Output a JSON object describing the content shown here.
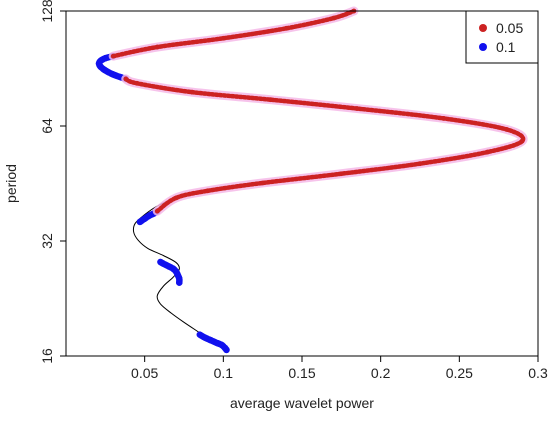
{
  "chart_data": {
    "type": "line",
    "title": "",
    "xlabel": "average wavelet power",
    "ylabel": "period",
    "xlim": [
      0.0,
      0.3
    ],
    "y_scale": "log2",
    "ylim": [
      16,
      128
    ],
    "x_ticks": [
      "0.05",
      "0.1",
      "0.15",
      "0.2",
      "0.25",
      "0.3"
    ],
    "y_ticks": [
      "16",
      "32",
      "64",
      "128"
    ],
    "grid": false,
    "legend_position": "top-right",
    "legend": [
      {
        "label": "0.05",
        "color": "#cc2222"
      },
      {
        "label": "0.1",
        "color": "#1111ee"
      }
    ],
    "series": [
      {
        "style": "line",
        "color": "#000000",
        "x": [
          0.102,
          0.1,
          0.092,
          0.085,
          0.075,
          0.067,
          0.06,
          0.058,
          0.062,
          0.068,
          0.072,
          0.07,
          0.062,
          0.052,
          0.046,
          0.043,
          0.044,
          0.05,
          0.058,
          0.07,
          0.09,
          0.125,
          0.175,
          0.225,
          0.268,
          0.29,
          0.28,
          0.24,
          0.185,
          0.13,
          0.08,
          0.045,
          0.025,
          0.021,
          0.03,
          0.058,
          0.1,
          0.14,
          0.17,
          0.183
        ],
        "y": [
          16.6,
          17.1,
          17.6,
          18.4,
          19.6,
          20.7,
          21.9,
          23.0,
          24.4,
          25.7,
          27.0,
          28.1,
          29.3,
          30.6,
          32.1,
          33.8,
          35.6,
          37.5,
          39.5,
          41.5,
          43.3,
          45.4,
          48.0,
          51.0,
          54.7,
          58.5,
          62.7,
          67.0,
          71.1,
          75.0,
          78.5,
          82.8,
          87.9,
          93.2,
          98.0,
          103.0,
          108.6,
          115.3,
          122.6,
          128.0
        ]
      },
      {
        "name": "0.1",
        "style": "points",
        "color": "#1111ee",
        "segments": [
          {
            "x": [
              0.102,
              0.101,
              0.099,
              0.096,
              0.092,
              0.088,
              0.085
            ],
            "y": [
              16.6,
              16.8,
              17.1,
              17.3,
              17.6,
              17.9,
              18.2
            ]
          },
          {
            "x": [
              0.072,
              0.072,
              0.071,
              0.07,
              0.068,
              0.065,
              0.062,
              0.06
            ],
            "y": [
              24.9,
              25.5,
              26.1,
              26.6,
              27.1,
              27.5,
              27.9,
              28.2
            ]
          },
          {
            "x": [
              0.047,
              0.05,
              0.053,
              0.056,
              0.058
            ],
            "y": [
              35.9,
              36.6,
              37.3,
              37.8,
              38.3
            ]
          },
          {
            "x": [
              0.038,
              0.03,
              0.025,
              0.022,
              0.021,
              0.022,
              0.025,
              0.03
            ],
            "y": [
              85.0,
              87.3,
              89.5,
              91.5,
              93.2,
              94.8,
              96.3,
              97.5
            ]
          }
        ]
      },
      {
        "name": "0.05",
        "style": "points",
        "color": "#cc2222",
        "segments": [
          {
            "x": [
              0.058,
              0.07,
              0.09,
              0.125,
              0.175,
              0.225,
              0.268,
              0.29,
              0.28,
              0.24,
              0.185,
              0.13,
              0.08,
              0.045,
              0.038
            ],
            "y": [
              38.3,
              41.5,
              43.3,
              45.4,
              48.0,
              51.0,
              54.7,
              58.5,
              62.7,
              67.0,
              71.1,
              75.0,
              78.5,
              82.8,
              85.0
            ]
          },
          {
            "x": [
              0.03,
              0.058,
              0.1,
              0.14,
              0.17,
              0.183
            ],
            "y": [
              97.5,
              103.0,
              108.6,
              115.3,
              122.6,
              128.0
            ]
          }
        ]
      }
    ]
  }
}
